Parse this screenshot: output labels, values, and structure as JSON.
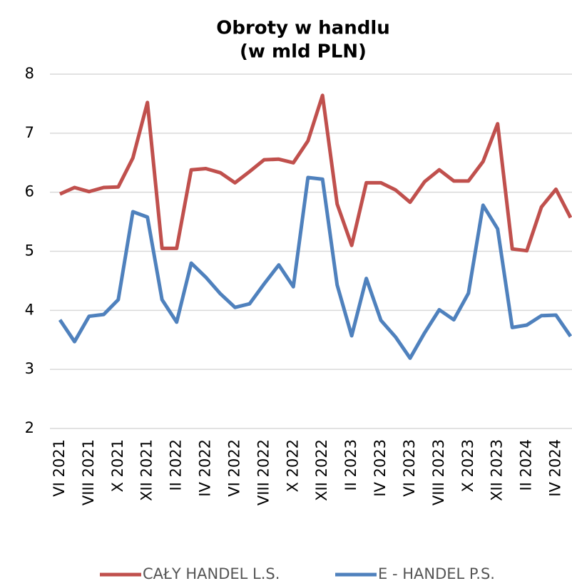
{
  "chart_data": {
    "type": "line",
    "title": "Obroty w handlu",
    "subtitle": "(w mld PLN)",
    "categories": [
      "VI 2021",
      null,
      "VIII 2021",
      null,
      "X 2021",
      null,
      "XII 2021",
      null,
      "II 2022",
      null,
      "IV 2022",
      null,
      "VI 2022",
      null,
      "VIII 2022",
      null,
      "X 2022",
      null,
      "XII 2022",
      null,
      "II 2023",
      null,
      "IV 2023",
      null,
      "VI 2023",
      null,
      "VIII 2023",
      null,
      "X 2023",
      null,
      "XII 2023",
      null,
      "II 2024",
      null,
      "IV 2024",
      null
    ],
    "series": [
      {
        "name": "CAŁY HANDEL L.S.",
        "color": "#c0504d",
        "values": [
          5.97,
          6.08,
          6.01,
          6.08,
          6.09,
          6.58,
          7.52,
          5.05,
          5.05,
          6.38,
          6.4,
          6.33,
          6.16,
          6.35,
          6.55,
          6.56,
          6.5,
          6.87,
          7.64,
          5.8,
          5.1,
          6.16,
          6.16,
          6.04,
          5.83,
          6.18,
          6.38,
          6.19,
          6.19,
          6.52,
          7.16,
          5.04,
          5.01,
          5.75,
          6.05,
          5.57
        ]
      },
      {
        "name": "E - HANDEL P.S.",
        "color": "#4f81bd",
        "values": [
          3.84,
          3.47,
          3.9,
          3.93,
          4.18,
          5.67,
          5.58,
          4.18,
          3.8,
          4.8,
          4.56,
          4.28,
          4.05,
          4.11,
          4.45,
          4.77,
          4.4,
          6.25,
          6.22,
          4.43,
          3.57,
          4.54,
          3.83,
          3.55,
          3.19,
          3.62,
          4.01,
          3.84,
          4.29,
          5.78,
          5.38,
          3.71,
          3.75,
          3.91,
          3.92,
          3.56
        ]
      }
    ],
    "ylim": [
      2,
      8
    ],
    "yticks": [
      2,
      3,
      4,
      5,
      6,
      7,
      8
    ],
    "grid": true,
    "legend": "bottom"
  }
}
